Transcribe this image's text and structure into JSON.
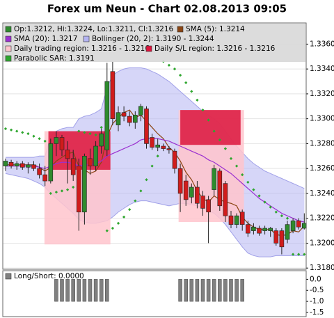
{
  "chart_data": [
    {
      "type": "candlestick",
      "title": "Forex um Neun - Chart 02.08.2013 09:05",
      "ylim": [
        1.3179,
        1.3377
      ],
      "yticks": [
        {
          "value": 1.318,
          "label": "1.3180"
        },
        {
          "value": 1.32,
          "label": "1.3200"
        },
        {
          "value": 1.322,
          "label": "1.3220"
        },
        {
          "value": 1.324,
          "label": "1.3240"
        },
        {
          "value": 1.326,
          "label": "1.3260"
        },
        {
          "value": 1.328,
          "label": "1.3280"
        },
        {
          "value": 1.33,
          "label": "1.3300"
        },
        {
          "value": 1.332,
          "label": "1.3320"
        },
        {
          "value": 1.334,
          "label": "1.3340"
        },
        {
          "value": 1.336,
          "label": "1.3360"
        }
      ],
      "grid": true,
      "series": [
        {
          "name": "Op:1.3212, Hi:1.3224, Lo:1.3211, Cl:1.3216",
          "kind": "candles",
          "color": "#2e8b2e",
          "down_color": "#d01c1c",
          "open": [
            1.3262,
            1.3265,
            1.3262,
            1.3264,
            1.3261,
            1.3263,
            1.326,
            1.3255,
            1.325,
            1.328,
            1.3285,
            1.3275,
            1.3268,
            1.3262,
            1.3225,
            1.3268,
            1.3262,
            1.3278,
            1.3275,
            1.3338,
            1.3295,
            1.3305,
            1.3302,
            1.3297,
            1.3303,
            1.3308,
            1.3285,
            1.3277,
            1.3278,
            1.3276,
            1.3274,
            1.326,
            1.325,
            1.3237,
            1.3245,
            1.3238,
            1.3235,
            1.3243,
            1.3258,
            1.3248,
            1.3222,
            1.3215,
            1.3225,
            1.3215,
            1.321,
            1.3212,
            1.321,
            1.321,
            1.321,
            1.321,
            1.3203,
            1.321,
            1.3218,
            1.3212
          ],
          "high": [
            1.3268,
            1.3267,
            1.3266,
            1.3266,
            1.3265,
            1.3266,
            1.3264,
            1.3262,
            1.3284,
            1.329,
            1.3287,
            1.3282,
            1.3275,
            1.3268,
            1.3272,
            1.3276,
            1.3282,
            1.3292,
            1.3345,
            1.3346,
            1.331,
            1.331,
            1.3306,
            1.3306,
            1.3312,
            1.331,
            1.3288,
            1.3284,
            1.328,
            1.3278,
            1.3276,
            1.3264,
            1.3255,
            1.3248,
            1.325,
            1.3242,
            1.3238,
            1.3263,
            1.326,
            1.325,
            1.3226,
            1.3224,
            1.3227,
            1.3218,
            1.3216,
            1.3214,
            1.3214,
            1.3213,
            1.3212,
            1.3212,
            1.3218,
            1.322,
            1.322,
            1.3224
          ],
          "low": [
            1.3258,
            1.326,
            1.3259,
            1.3259,
            1.3256,
            1.3258,
            1.3252,
            1.3246,
            1.3248,
            1.327,
            1.327,
            1.3248,
            1.325,
            1.321,
            1.3215,
            1.3255,
            1.3258,
            1.3272,
            1.327,
            1.3295,
            1.329,
            1.3298,
            1.3294,
            1.3292,
            1.3298,
            1.3276,
            1.3275,
            1.3274,
            1.3274,
            1.3272,
            1.3256,
            1.3225,
            1.323,
            1.3232,
            1.3228,
            1.3222,
            1.32,
            1.3238,
            1.3226,
            1.3217,
            1.3212,
            1.3212,
            1.321,
            1.3205,
            1.3207,
            1.3206,
            1.3207,
            1.3205,
            1.3198,
            1.3191,
            1.32,
            1.3208,
            1.3211,
            1.3211
          ],
          "close": [
            1.3266,
            1.3262,
            1.3264,
            1.3261,
            1.3263,
            1.326,
            1.3255,
            1.325,
            1.328,
            1.3285,
            1.3275,
            1.3268,
            1.3255,
            1.3225,
            1.327,
            1.3262,
            1.3278,
            1.3288,
            1.333,
            1.33,
            1.3305,
            1.3302,
            1.3297,
            1.3303,
            1.331,
            1.328,
            1.3277,
            1.3279,
            1.3276,
            1.3275,
            1.326,
            1.324,
            1.3235,
            1.3245,
            1.3232,
            1.3228,
            1.3225,
            1.326,
            1.323,
            1.3222,
            1.3215,
            1.3222,
            1.3215,
            1.3208,
            1.3213,
            1.3208,
            1.3212,
            1.3212,
            1.32,
            1.3197,
            1.3215,
            1.3218,
            1.3213,
            1.3216
          ]
        },
        {
          "name": "SMA (5): 1.3214",
          "kind": "line",
          "color": "#8b4513",
          "values": [
            1.3263,
            1.3263,
            1.3263,
            1.3263,
            1.3263,
            1.3263,
            1.3261,
            1.3258,
            1.3261,
            1.3266,
            1.3269,
            1.3272,
            1.3273,
            1.3262,
            1.3259,
            1.3256,
            1.3258,
            1.3265,
            1.3286,
            1.3296,
            1.3301,
            1.3305,
            1.3307,
            1.3301,
            1.3303,
            1.3298,
            1.3293,
            1.3288,
            1.3284,
            1.3277,
            1.3273,
            1.3266,
            1.3257,
            1.3251,
            1.3242,
            1.3236,
            1.3233,
            1.3238,
            1.3235,
            1.3233,
            1.3232,
            1.323,
            1.3221,
            1.3216,
            1.3213,
            1.3211,
            1.3211,
            1.3211,
            1.3207,
            1.3206,
            1.3207,
            1.321,
            1.3209,
            1.3214
          ]
        },
        {
          "name": "SMA (20): 1.3217",
          "kind": "line",
          "color": "#9b30d0",
          "values": [
            1.3262,
            1.3262,
            1.3262,
            1.3262,
            1.3262,
            1.3262,
            1.3261,
            1.326,
            1.3262,
            1.3264,
            1.3265,
            1.3265,
            1.3264,
            1.3262,
            1.3263,
            1.3263,
            1.3264,
            1.3266,
            1.327,
            1.3272,
            1.3274,
            1.3276,
            1.3278,
            1.328,
            1.3283,
            1.3284,
            1.3284,
            1.3284,
            1.3283,
            1.3282,
            1.328,
            1.3278,
            1.3276,
            1.3274,
            1.3272,
            1.327,
            1.3267,
            1.3265,
            1.3262,
            1.3259,
            1.3256,
            1.3252,
            1.3248,
            1.3244,
            1.324,
            1.3236,
            1.3233,
            1.323,
            1.3227,
            1.3224,
            1.3222,
            1.322,
            1.3218,
            1.3217
          ]
        },
        {
          "name": "Bollinger (20, 2): 1.3190 - 1.3244",
          "kind": "band",
          "color": "#b4b4f2",
          "upper": [
            1.3269,
            1.3269,
            1.3269,
            1.3269,
            1.3269,
            1.3269,
            1.327,
            1.327,
            1.3286,
            1.329,
            1.3292,
            1.3293,
            1.3293,
            1.33,
            1.3302,
            1.3303,
            1.3305,
            1.3308,
            1.3325,
            1.3335,
            1.3338,
            1.334,
            1.3341,
            1.3341,
            1.3341,
            1.334,
            1.3338,
            1.3336,
            1.3333,
            1.333,
            1.3326,
            1.3322,
            1.3318,
            1.3314,
            1.331,
            1.3306,
            1.3303,
            1.33,
            1.3296,
            1.329,
            1.3284,
            1.3278,
            1.3273,
            1.3268,
            1.3264,
            1.3261,
            1.3258,
            1.3256,
            1.3254,
            1.3252,
            1.325,
            1.3248,
            1.3246,
            1.3244
          ],
          "lower": [
            1.3256,
            1.3255,
            1.3254,
            1.3253,
            1.3252,
            1.325,
            1.3248,
            1.3245,
            1.324,
            1.3236,
            1.3232,
            1.3228,
            1.3224,
            1.3219,
            1.3217,
            1.3216,
            1.3216,
            1.3217,
            1.3218,
            1.3221,
            1.3225,
            1.3228,
            1.3231,
            1.3233,
            1.3234,
            1.3234,
            1.3233,
            1.3232,
            1.3231,
            1.323,
            1.3231,
            1.3232,
            1.3232,
            1.3231,
            1.323,
            1.3228,
            1.3226,
            1.3224,
            1.322,
            1.3215,
            1.3209,
            1.3203,
            1.3197,
            1.3192,
            1.319,
            1.3189,
            1.3189,
            1.3189,
            1.319,
            1.319,
            1.319,
            1.319,
            1.319,
            1.319
          ]
        },
        {
          "name": "Daily trading region: 1.3216 - 1.3216",
          "kind": "region",
          "color": "#ffc4cc",
          "regions": [
            {
              "start": 6.9,
              "end": 18.6,
              "top": 1.329,
              "bottom": 1.3199
            },
            {
              "start": 30.7,
              "end": 42.3,
              "top": 1.3307,
              "bottom": 1.3217
            }
          ]
        },
        {
          "name": "Daily S/L region: 1.3216 - 1.3216",
          "kind": "region",
          "color": "#dc143c",
          "regions": [
            {
              "start": 7.6,
              "end": 18.6,
              "top": 1.329,
              "bottom": 1.3259
            },
            {
              "start": 31.0,
              "end": 41.7,
              "top": 1.3307,
              "bottom": 1.3279
            }
          ]
        },
        {
          "name": "Parabolic SAR: 1.3191",
          "kind": "dots",
          "color": "#2ea62e",
          "values": [
            1.3292,
            1.3291,
            1.329,
            1.3289,
            1.3288,
            1.3286,
            1.3284,
            1.3282,
            1.324,
            1.3241,
            1.3242,
            1.3243,
            1.3245,
            1.329,
            1.3289,
            1.3288,
            1.3287,
            1.3293,
            1.321,
            1.3212,
            1.3216,
            1.3221,
            1.3227,
            1.3234,
            1.3242,
            1.3251,
            1.3262,
            1.327,
            1.3346,
            1.3343,
            1.334,
            1.3335,
            1.3329,
            1.3322,
            1.3315,
            1.3307,
            1.3299,
            1.329,
            1.3283,
            1.3276,
            1.3268,
            1.3262,
            1.3255,
            1.3249,
            1.3243,
            1.3238,
            1.3233,
            1.3229,
            1.3225,
            1.3222,
            1.322,
            1.3191,
            1.3191,
            1.3191
          ]
        }
      ]
    },
    {
      "type": "bar",
      "ylim": [
        -1.69,
        0.39
      ],
      "yticks": [
        {
          "value": 0,
          "label": "0.0"
        },
        -0.5,
        {
          "value": -1,
          "label": "-1.0"
        },
        -1.5
      ],
      "series": [
        {
          "name": "Long/Short: 0.0000",
          "color": "#808080",
          "values": [
            0,
            0,
            0,
            0,
            0,
            0,
            0,
            0,
            0,
            -1,
            -1,
            -1,
            -1,
            -1,
            -1,
            -1,
            -1,
            -1,
            -1,
            0,
            0,
            0,
            0,
            0,
            0,
            0,
            0,
            0,
            0,
            0,
            0,
            -1,
            -1,
            -1,
            -1,
            -1,
            -1,
            -1,
            -1,
            -1,
            -1,
            -1,
            -1,
            0,
            0,
            0,
            0,
            0,
            0,
            0,
            0,
            0,
            0,
            0
          ]
        }
      ]
    }
  ]
}
